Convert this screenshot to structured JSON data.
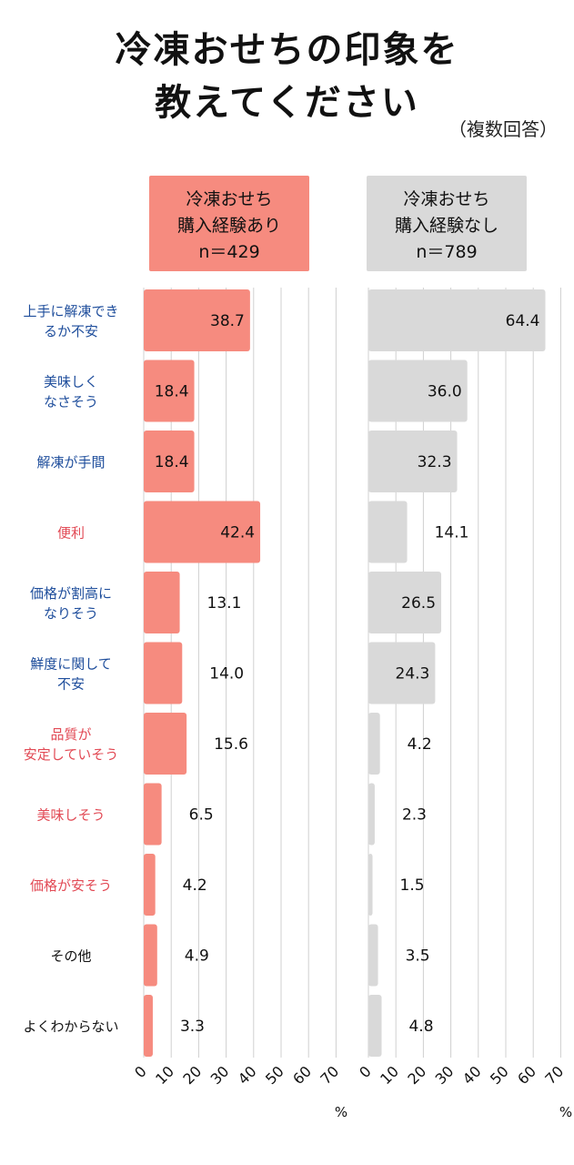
{
  "title_line1": "冷凍おせちの印象を",
  "title_line2": "教えてください",
  "subtitle": "（複数回答）",
  "colors": {
    "left": "#f68b7f",
    "right": "#d9d9d9",
    "blue": "#1f4e9c",
    "red": "#e24a55",
    "black": "#111111"
  },
  "chart_data": {
    "type": "bar",
    "orientation": "horizontal",
    "categories": [
      {
        "lines": [
          "上手に解凍でき",
          "るか不安"
        ],
        "color": "blue"
      },
      {
        "lines": [
          "美味しく",
          "なさそう"
        ],
        "color": "blue"
      },
      {
        "lines": [
          "解凍が手間"
        ],
        "color": "blue"
      },
      {
        "lines": [
          "便利"
        ],
        "color": "red"
      },
      {
        "lines": [
          "価格が割高に",
          "なりそう"
        ],
        "color": "blue"
      },
      {
        "lines": [
          "鮮度に関して",
          "不安"
        ],
        "color": "blue"
      },
      {
        "lines": [
          "品質が",
          "安定していそう"
        ],
        "color": "red"
      },
      {
        "lines": [
          "美味しそう"
        ],
        "color": "red"
      },
      {
        "lines": [
          "価格が安そう"
        ],
        "color": "red"
      },
      {
        "lines": [
          "その他"
        ],
        "color": "black"
      },
      {
        "lines": [
          "よくわからない"
        ],
        "color": "black"
      }
    ],
    "series": [
      {
        "header": [
          "冷凍おせち",
          "購入経験あり",
          "n＝429"
        ],
        "values": [
          38.7,
          18.4,
          18.4,
          42.4,
          13.1,
          14.0,
          15.6,
          6.5,
          4.2,
          4.9,
          3.3
        ],
        "labels": [
          "38.7",
          "18.4",
          "18.4",
          "42.4",
          "13.1",
          "14.0",
          "15.6",
          "6.5",
          "4.2",
          "4.9",
          "3.3"
        ]
      },
      {
        "header": [
          "冷凍おせち",
          "購入経験なし",
          "n＝789"
        ],
        "values": [
          64.4,
          36.0,
          32.3,
          14.1,
          26.5,
          24.3,
          4.2,
          2.3,
          1.5,
          3.5,
          4.8
        ],
        "labels": [
          "64.4",
          "36.0",
          "32.3",
          "14.1",
          "26.5",
          "24.3",
          "4.2",
          "2.3",
          "1.5",
          "3.5",
          "4.8"
        ]
      }
    ],
    "xlim": [
      0,
      70
    ],
    "xticks": [
      "0",
      "10",
      "20",
      "30",
      "40",
      "50",
      "60",
      "70"
    ],
    "xunit": "%",
    "grid": true
  }
}
